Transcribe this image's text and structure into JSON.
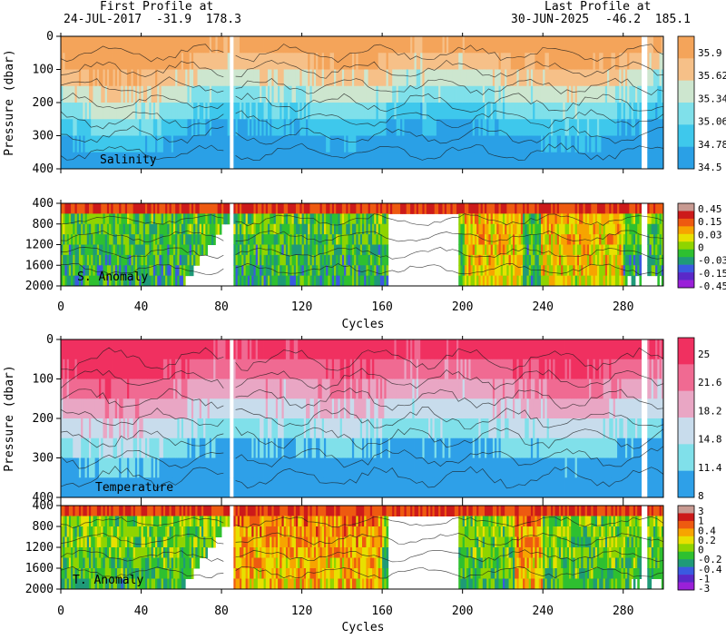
{
  "header": {
    "first_title": "First Profile at",
    "first_date": "24-JUL-2017",
    "first_coords": "-31.9  178.3",
    "last_title": "Last Profile at",
    "last_date": "30-JUN-2025",
    "last_coords": "-46.2  185.1"
  },
  "chart_data": [
    {
      "type": "heatmap",
      "panel": "salinity",
      "label": "Salinity",
      "ylabel": "Pressure (dbar)",
      "xlim": [
        0,
        300
      ],
      "ylim": [
        400,
        0
      ],
      "y_ticks": [
        "0",
        "100",
        "200",
        "300",
        "400"
      ],
      "colorbar_labels": [
        "35.9",
        "35.62",
        "35.34",
        "35.06",
        "34.78",
        "34.5"
      ],
      "colors": [
        "#f4a45a",
        "#f6c088",
        "#cde6cf",
        "#7fe0ea",
        "#3ec8ec",
        "#2aa0e6"
      ],
      "gap_cycles": [
        [
          84,
          85
        ],
        [
          290,
          292
        ]
      ]
    },
    {
      "type": "heatmap",
      "panel": "salinity_anomaly",
      "label": "S. Anomaly",
      "xlim": [
        0,
        300
      ],
      "ylim": [
        2000,
        400
      ],
      "y_ticks": [
        "400",
        "800",
        "1200",
        "1600",
        "2000"
      ],
      "colorbar_labels": [
        "0.45",
        "0.15",
        "0.03",
        "0",
        "-0.03",
        "-0.15",
        "-0.45"
      ],
      "colors": [
        "#c89a92",
        "#cc1a1a",
        "#ee5a10",
        "#f7a400",
        "#e8e000",
        "#8fd400",
        "#2ec030",
        "#1f9a78",
        "#3a5ae0",
        "#5a28c8",
        "#9a20d8"
      ],
      "xlabel": "Cycles",
      "x_ticks": [
        "0",
        "40",
        "80",
        "120",
        "160",
        "200",
        "240",
        "280"
      ]
    },
    {
      "type": "heatmap",
      "panel": "temperature",
      "label": "Temperature",
      "ylabel": "Pressure (dbar)",
      "xlim": [
        0,
        300
      ],
      "ylim": [
        400,
        0
      ],
      "y_ticks": [
        "0",
        "100",
        "200",
        "300",
        "400"
      ],
      "colorbar_labels": [
        "25",
        "21.6",
        "18.2",
        "14.8",
        "11.4",
        "8"
      ],
      "colors": [
        "#f03060",
        "#f06a92",
        "#e9a6c4",
        "#c8dcec",
        "#80e0ea",
        "#2ea0e8"
      ]
    },
    {
      "type": "heatmap",
      "panel": "temperature_anomaly",
      "label": "T. Anomaly",
      "xlim": [
        0,
        300
      ],
      "ylim": [
        2000,
        400
      ],
      "y_ticks": [
        "400",
        "800",
        "1200",
        "1600",
        "2000"
      ],
      "colorbar_labels": [
        "3",
        "1",
        "0.4",
        "0.2",
        "0",
        "-0.2",
        "-0.4",
        "-1",
        "-3"
      ],
      "colors": [
        "#c89a92",
        "#cc1a1a",
        "#ee5a10",
        "#f7a400",
        "#e8e000",
        "#8fd400",
        "#2ec030",
        "#1f9a78",
        "#3a5ae0",
        "#5a28c8",
        "#9a20d8"
      ],
      "xlabel": "Cycles",
      "x_ticks": [
        "0",
        "40",
        "80",
        "120",
        "160",
        "200",
        "240",
        "280"
      ]
    }
  ]
}
